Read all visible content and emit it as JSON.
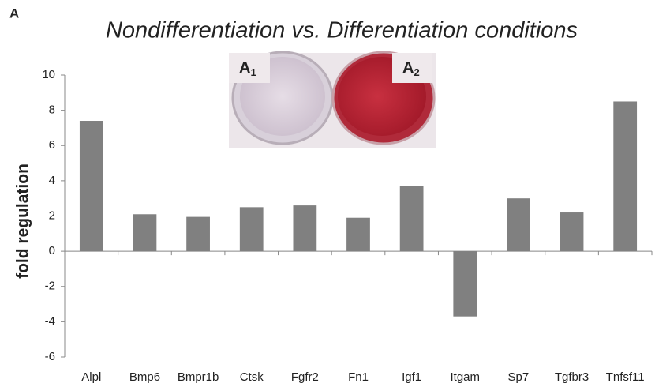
{
  "chart_data": {
    "type": "bar",
    "panel_label": "A",
    "title": "Nondifferentiation vs. Differentiation conditions",
    "y_label": "fold regulation",
    "annotations": [
      {
        "text": "A",
        "sub": "1"
      },
      {
        "text": "A",
        "sub": "2"
      }
    ],
    "categories": [
      "Alpl",
      "Bmp6",
      "Bmpr1b",
      "Ctsk",
      "Fgfr2",
      "Fn1",
      "Igf1",
      "Itgam",
      "Sp7",
      "Tgfbr3",
      "Tnfsf11"
    ],
    "values": [
      7.4,
      2.1,
      1.95,
      2.5,
      2.6,
      1.9,
      3.7,
      -3.7,
      3.0,
      2.2,
      8.5
    ],
    "color": "#808080",
    "ylim": [
      -6,
      10
    ],
    "yticks": [
      -6,
      -4,
      -2,
      0,
      2,
      4,
      6,
      8,
      10
    ],
    "grid": false
  }
}
